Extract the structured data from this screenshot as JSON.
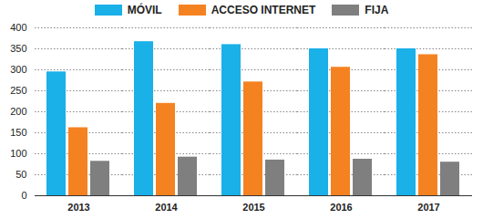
{
  "chart_data": {
    "type": "bar",
    "categories": [
      "2013",
      "2014",
      "2015",
      "2016",
      "2017"
    ],
    "series": [
      {
        "name": "MÓVIL",
        "color": "#1ab0e8",
        "values": [
          295,
          367,
          360,
          350,
          350
        ]
      },
      {
        "name": "ACCESO INTERNET",
        "color": "#f58220",
        "values": [
          162,
          220,
          271,
          306,
          336
        ]
      },
      {
        "name": "FIJA",
        "color": "#7f7f7f",
        "values": [
          82,
          92,
          85,
          87,
          80
        ]
      }
    ],
    "ylim": [
      0,
      400
    ],
    "yticks": [
      0,
      50,
      100,
      150,
      200,
      250,
      300,
      350,
      400
    ],
    "grid": true,
    "legend": "top"
  }
}
